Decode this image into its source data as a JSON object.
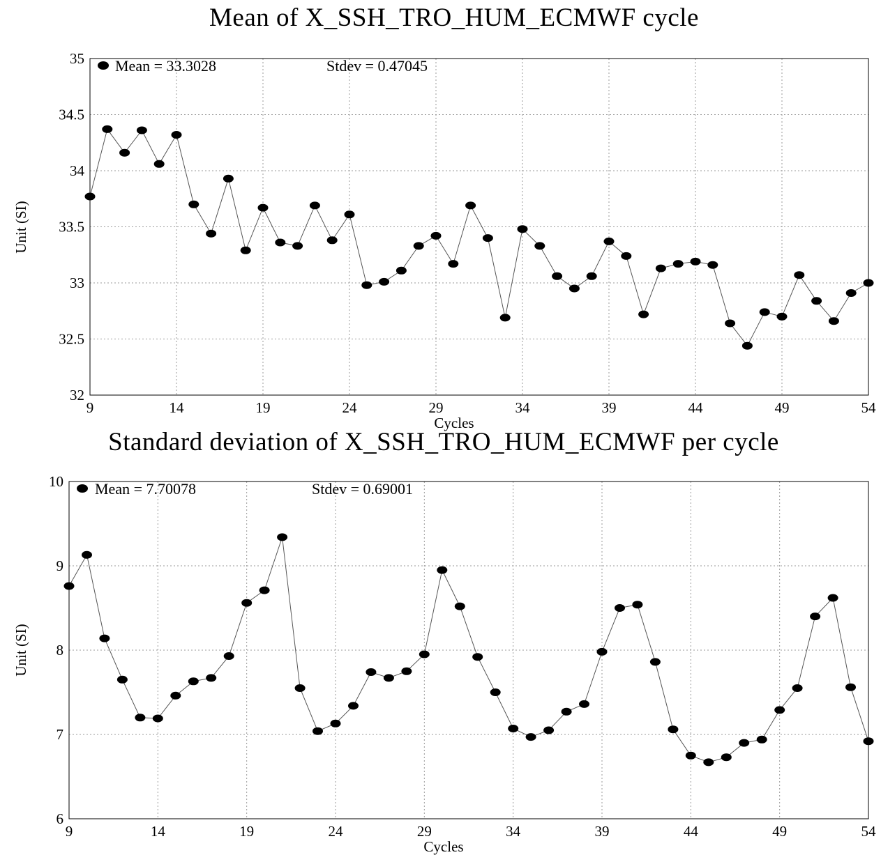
{
  "chart_data": [
    {
      "type": "line",
      "title": "Mean of X_SSH_TRO_HUM_ECMWF cycle",
      "xlabel": "Cycles",
      "ylabel": "Unit (SI)",
      "xlim": [
        9,
        54
      ],
      "ylim": [
        32,
        35
      ],
      "xticks": [
        "9",
        "14",
        "19",
        "24",
        "29",
        "34",
        "39",
        "44",
        "49",
        "54"
      ],
      "yticks": [
        "32",
        "32.5",
        "33",
        "33.5",
        "34",
        "34.5",
        "35"
      ],
      "grid": true,
      "legend": {
        "marker_label": "Mean = 33.3028",
        "stdev_label": "Stdev = 0.47045",
        "placement": "top-left"
      },
      "series": [
        {
          "x": [
            9,
            10,
            11,
            12,
            13,
            14,
            15,
            16,
            17,
            18,
            19,
            20,
            21,
            22,
            23,
            24,
            25,
            26,
            27,
            28,
            29,
            30,
            31,
            32,
            33,
            34,
            35,
            36,
            37,
            38,
            39,
            40,
            41,
            42,
            43,
            44,
            45,
            46,
            47,
            48,
            49,
            50,
            51,
            52,
            53,
            54
          ],
          "values": [
            33.77,
            34.37,
            34.16,
            34.36,
            34.06,
            34.32,
            33.7,
            33.44,
            33.93,
            33.29,
            33.67,
            33.36,
            33.33,
            33.69,
            33.38,
            33.61,
            32.98,
            33.01,
            33.11,
            33.33,
            33.42,
            33.17,
            33.69,
            33.4,
            32.69,
            33.48,
            33.33,
            33.06,
            32.95,
            33.06,
            33.37,
            33.24,
            32.72,
            33.13,
            33.17,
            33.19,
            33.16,
            32.64,
            32.44,
            32.74,
            32.7,
            33.07,
            32.84,
            32.66,
            32.91,
            33.0
          ]
        }
      ]
    },
    {
      "type": "line",
      "title": "Standard deviation of X_SSH_TRO_HUM_ECMWF per cycle",
      "xlabel": "Cycles",
      "ylabel": "Unit (SI)",
      "xlim": [
        9,
        54
      ],
      "ylim": [
        6,
        10
      ],
      "xticks": [
        "9",
        "14",
        "19",
        "24",
        "29",
        "34",
        "39",
        "44",
        "49",
        "54"
      ],
      "yticks": [
        "6",
        "7",
        "8",
        "9",
        "10"
      ],
      "grid": true,
      "legend": {
        "marker_label": "Mean = 7.70078",
        "stdev_label": "Stdev = 0.69001",
        "placement": "top-left"
      },
      "series": [
        {
          "x": [
            9,
            10,
            11,
            12,
            13,
            14,
            15,
            16,
            17,
            18,
            19,
            20,
            21,
            22,
            23,
            24,
            25,
            26,
            27,
            28,
            29,
            30,
            31,
            32,
            33,
            34,
            35,
            36,
            37,
            38,
            39,
            40,
            41,
            42,
            43,
            44,
            45,
            46,
            47,
            48,
            49,
            50,
            51,
            52,
            53,
            54
          ],
          "values": [
            8.76,
            9.13,
            8.14,
            7.65,
            7.2,
            7.19,
            7.46,
            7.63,
            7.67,
            7.93,
            8.56,
            8.71,
            9.34,
            7.55,
            7.04,
            7.13,
            7.34,
            7.74,
            7.67,
            7.75,
            7.95,
            8.95,
            8.52,
            7.92,
            7.5,
            7.07,
            6.97,
            7.05,
            7.27,
            7.36,
            7.98,
            8.5,
            8.54,
            7.86,
            7.06,
            6.75,
            6.67,
            6.73,
            6.9,
            6.94,
            7.29,
            7.55,
            8.4,
            8.62,
            7.56,
            6.92
          ]
        }
      ]
    }
  ]
}
